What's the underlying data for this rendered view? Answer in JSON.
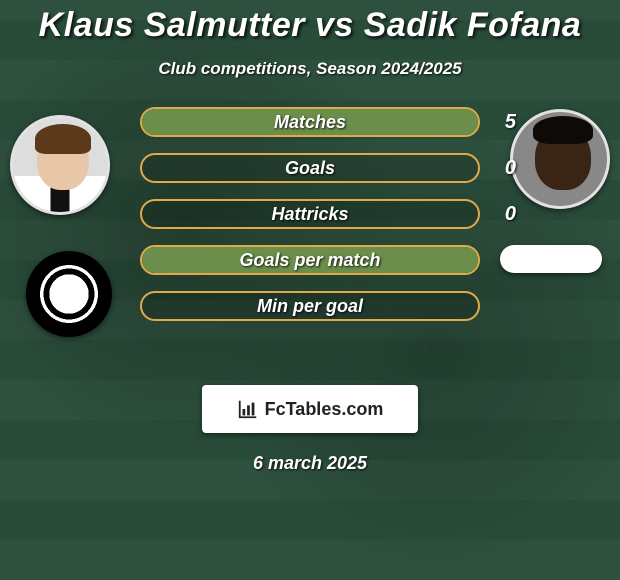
{
  "title": "Klaus Salmutter vs Sadik Fofana",
  "subtitle": "Club competitions, Season 2024/2025",
  "date": "6 march 2025",
  "site_label": "FcTables.com",
  "colors": {
    "bar_border": "#e0a94a",
    "bar_fill": "#6b8f4a",
    "title_text": "#ffffff"
  },
  "bars": [
    {
      "label": "Matches",
      "value": "5",
      "fill_pct": 100
    },
    {
      "label": "Goals",
      "value": "0",
      "fill_pct": 0
    },
    {
      "label": "Hattricks",
      "value": "0",
      "fill_pct": 0
    },
    {
      "label": "Goals per match",
      "value": "",
      "fill_pct": 100
    },
    {
      "label": "Min per goal",
      "value": "",
      "fill_pct": 0
    }
  ]
}
